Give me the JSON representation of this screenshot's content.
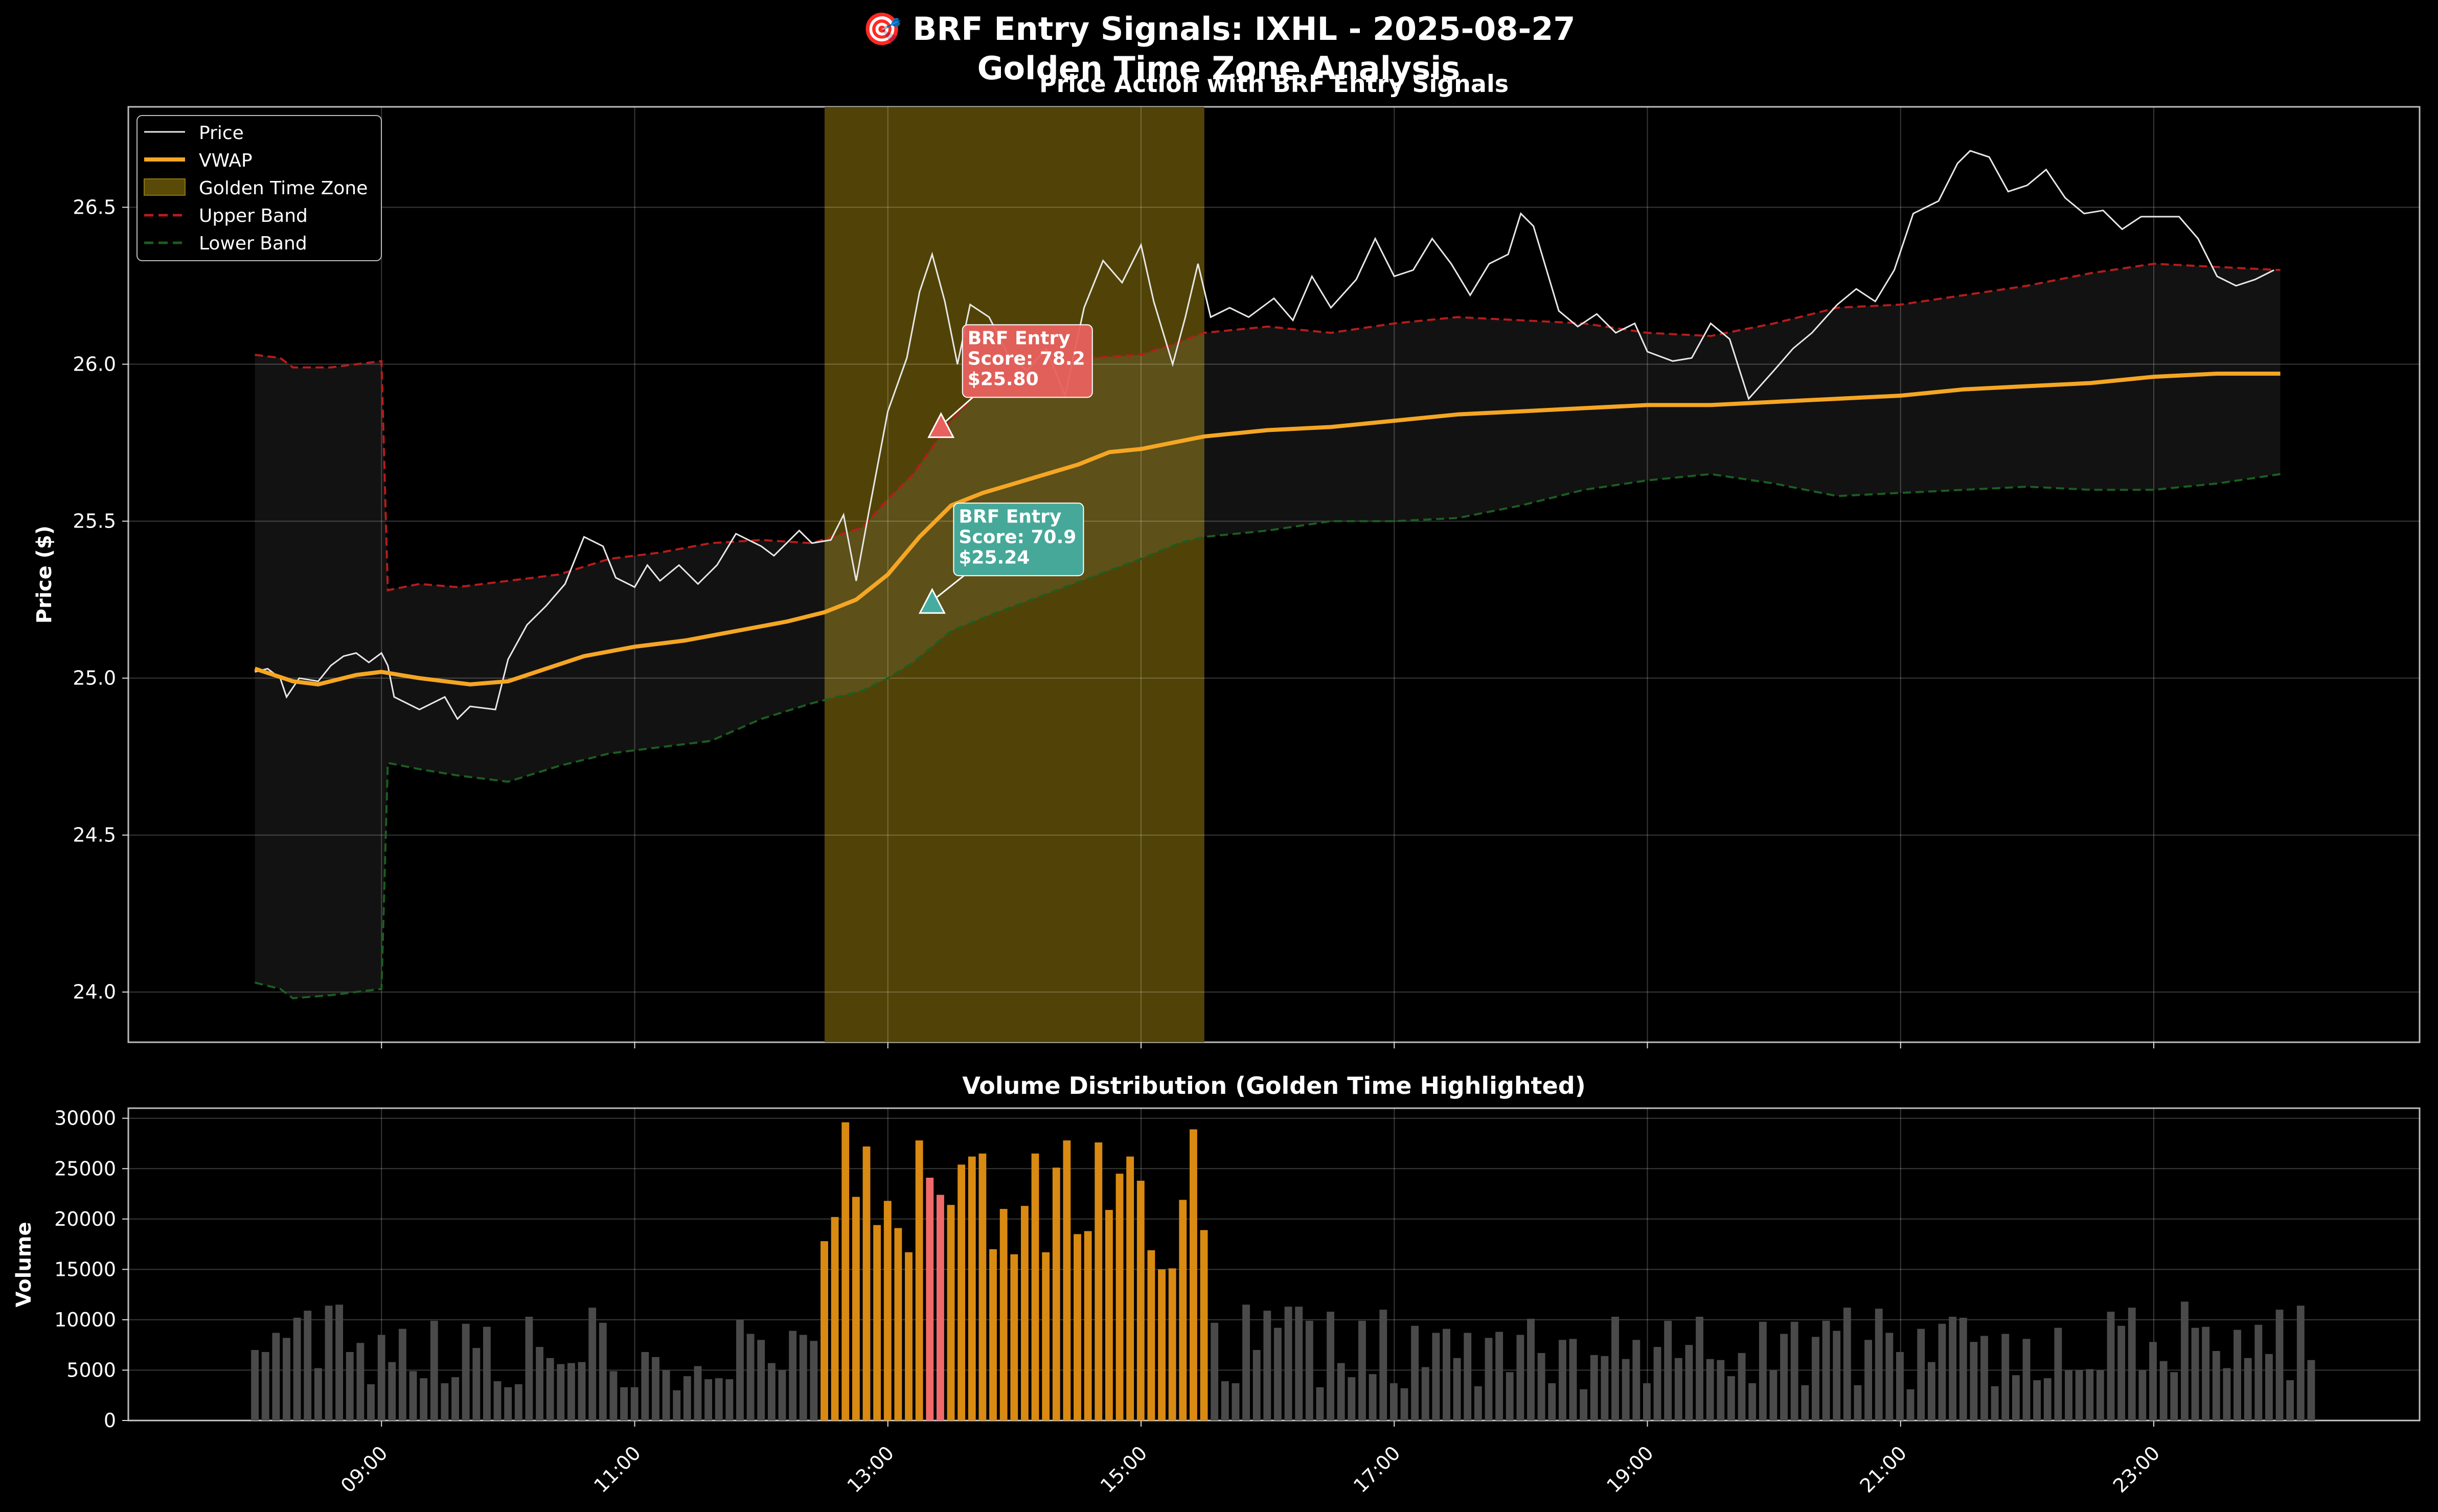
{
  "figure": {
    "title_line1": "🎯 BRF Entry Signals: IXHL - 2025-08-27",
    "title_line2": "Golden Time Zone Analysis"
  },
  "price_panel": {
    "title": "Price Action with BRF Entry Signals",
    "ylabel": "Price ($)",
    "legend": [
      "Price",
      "VWAP",
      "Golden Time Zone",
      "Upper Band",
      "Lower Band"
    ]
  },
  "volume_panel": {
    "title": "Volume Distribution (Golden Time Highlighted)",
    "ylabel": "Volume"
  },
  "colors": {
    "price": "#e8e8e8",
    "vwap": "#f5a623",
    "golden_zone": "#5a4a08",
    "upper_band": "#b71c1c",
    "lower_band": "#1b5e20",
    "signal_red": "#e8615e",
    "signal_teal": "#45ada0",
    "volume_default": "#4a4a4a",
    "volume_golden": "#d98a12",
    "volume_signal": "#f06a6a"
  },
  "chart_data": {
    "type": "line",
    "x_unit": "hour of day",
    "x_range": [
      7.0,
      25.1
    ],
    "x_ticks": [
      "09:00",
      "11:00",
      "13:00",
      "15:00",
      "17:00",
      "19:00",
      "21:00",
      "23:00"
    ],
    "golden_time_zone": [
      "12:30",
      "15:30"
    ],
    "price_axis": {
      "ylim": [
        23.84,
        26.82
      ],
      "yticks": [
        "24.0",
        "24.5",
        "25.0",
        "25.5",
        "26.0",
        "26.5"
      ]
    },
    "price_series": [
      [
        8.0,
        25.02
      ],
      [
        8.1,
        25.03
      ],
      [
        8.2,
        25.0
      ],
      [
        8.25,
        24.94
      ],
      [
        8.35,
        25.0
      ],
      [
        8.5,
        24.99
      ],
      [
        8.6,
        25.04
      ],
      [
        8.7,
        25.07
      ],
      [
        8.8,
        25.08
      ],
      [
        8.9,
        25.05
      ],
      [
        9.0,
        25.08
      ],
      [
        9.05,
        25.04
      ],
      [
        9.1,
        24.94
      ],
      [
        9.3,
        24.9
      ],
      [
        9.5,
        24.94
      ],
      [
        9.6,
        24.87
      ],
      [
        9.7,
        24.91
      ],
      [
        9.9,
        24.9
      ],
      [
        10.0,
        25.06
      ],
      [
        10.15,
        25.17
      ],
      [
        10.3,
        25.23
      ],
      [
        10.45,
        25.3
      ],
      [
        10.6,
        25.45
      ],
      [
        10.75,
        25.42
      ],
      [
        10.85,
        25.32
      ],
      [
        11.0,
        25.29
      ],
      [
        11.1,
        25.36
      ],
      [
        11.2,
        25.31
      ],
      [
        11.35,
        25.36
      ],
      [
        11.5,
        25.3
      ],
      [
        11.65,
        25.36
      ],
      [
        11.8,
        25.46
      ],
      [
        12.0,
        25.42
      ],
      [
        12.1,
        25.39
      ],
      [
        12.3,
        25.47
      ],
      [
        12.4,
        25.43
      ],
      [
        12.55,
        25.44
      ],
      [
        12.65,
        25.52
      ],
      [
        12.75,
        25.31
      ],
      [
        12.85,
        25.53
      ],
      [
        13.0,
        25.85
      ],
      [
        13.15,
        26.02
      ],
      [
        13.25,
        26.23
      ],
      [
        13.35,
        26.35
      ],
      [
        13.45,
        26.2
      ],
      [
        13.55,
        26.0
      ],
      [
        13.65,
        26.19
      ],
      [
        13.8,
        26.15
      ],
      [
        13.95,
        26.03
      ],
      [
        14.1,
        25.98
      ],
      [
        14.25,
        26.05
      ],
      [
        14.4,
        25.9
      ],
      [
        14.55,
        26.18
      ],
      [
        14.7,
        26.33
      ],
      [
        14.85,
        26.26
      ],
      [
        15.0,
        26.38
      ],
      [
        15.1,
        26.2
      ],
      [
        15.25,
        26.0
      ],
      [
        15.35,
        26.15
      ],
      [
        15.45,
        26.32
      ],
      [
        15.55,
        26.15
      ],
      [
        15.7,
        26.18
      ],
      [
        15.85,
        26.15
      ],
      [
        16.05,
        26.21
      ],
      [
        16.2,
        26.14
      ],
      [
        16.35,
        26.28
      ],
      [
        16.5,
        26.18
      ],
      [
        16.7,
        26.27
      ],
      [
        16.85,
        26.4
      ],
      [
        17.0,
        26.28
      ],
      [
        17.15,
        26.3
      ],
      [
        17.3,
        26.4
      ],
      [
        17.45,
        26.32
      ],
      [
        17.6,
        26.22
      ],
      [
        17.75,
        26.32
      ],
      [
        17.9,
        26.35
      ],
      [
        18.0,
        26.48
      ],
      [
        18.1,
        26.44
      ],
      [
        18.3,
        26.17
      ],
      [
        18.45,
        26.12
      ],
      [
        18.6,
        26.16
      ],
      [
        18.75,
        26.1
      ],
      [
        18.9,
        26.13
      ],
      [
        19.0,
        26.04
      ],
      [
        19.2,
        26.01
      ],
      [
        19.35,
        26.02
      ],
      [
        19.5,
        26.13
      ],
      [
        19.65,
        26.08
      ],
      [
        19.8,
        25.89
      ],
      [
        20.0,
        25.98
      ],
      [
        20.15,
        26.05
      ],
      [
        20.3,
        26.1
      ],
      [
        20.5,
        26.19
      ],
      [
        20.65,
        26.24
      ],
      [
        20.8,
        26.2
      ],
      [
        20.95,
        26.3
      ],
      [
        21.1,
        26.48
      ],
      [
        21.3,
        26.52
      ],
      [
        21.45,
        26.64
      ],
      [
        21.55,
        26.68
      ],
      [
        21.7,
        26.66
      ],
      [
        21.85,
        26.55
      ],
      [
        22.0,
        26.57
      ],
      [
        22.15,
        26.62
      ],
      [
        22.3,
        26.53
      ],
      [
        22.45,
        26.48
      ],
      [
        22.6,
        26.49
      ],
      [
        22.75,
        26.43
      ],
      [
        22.9,
        26.47
      ],
      [
        23.05,
        26.47
      ],
      [
        23.2,
        26.47
      ],
      [
        23.35,
        26.4
      ],
      [
        23.5,
        26.28
      ],
      [
        23.65,
        26.25
      ],
      [
        23.8,
        26.27
      ],
      [
        23.95,
        26.3
      ]
    ],
    "vwap_series": [
      [
        8.0,
        25.03
      ],
      [
        8.3,
        24.99
      ],
      [
        8.5,
        24.98
      ],
      [
        8.8,
        25.01
      ],
      [
        9.0,
        25.02
      ],
      [
        9.3,
        25.0
      ],
      [
        9.7,
        24.98
      ],
      [
        10.0,
        24.99
      ],
      [
        10.3,
        25.03
      ],
      [
        10.6,
        25.07
      ],
      [
        11.0,
        25.1
      ],
      [
        11.4,
        25.12
      ],
      [
        11.8,
        25.15
      ],
      [
        12.2,
        25.18
      ],
      [
        12.5,
        25.21
      ],
      [
        12.75,
        25.25
      ],
      [
        13.0,
        25.33
      ],
      [
        13.25,
        25.45
      ],
      [
        13.5,
        25.55
      ],
      [
        13.75,
        25.59
      ],
      [
        14.0,
        25.62
      ],
      [
        14.25,
        25.65
      ],
      [
        14.5,
        25.68
      ],
      [
        14.75,
        25.72
      ],
      [
        15.0,
        25.73
      ],
      [
        15.25,
        25.75
      ],
      [
        15.5,
        25.77
      ],
      [
        16.0,
        25.79
      ],
      [
        16.5,
        25.8
      ],
      [
        17.0,
        25.82
      ],
      [
        17.5,
        25.84
      ],
      [
        18.0,
        25.85
      ],
      [
        18.5,
        25.86
      ],
      [
        19.0,
        25.87
      ],
      [
        19.5,
        25.87
      ],
      [
        20.0,
        25.88
      ],
      [
        20.5,
        25.89
      ],
      [
        21.0,
        25.9
      ],
      [
        21.5,
        25.92
      ],
      [
        22.0,
        25.93
      ],
      [
        22.5,
        25.94
      ],
      [
        23.0,
        25.96
      ],
      [
        23.5,
        25.97
      ],
      [
        24.0,
        25.97
      ]
    ],
    "upper_band_series": [
      [
        8.0,
        26.03
      ],
      [
        8.2,
        26.02
      ],
      [
        8.3,
        25.99
      ],
      [
        8.6,
        25.99
      ],
      [
        8.8,
        26.0
      ],
      [
        9.0,
        26.01
      ],
      [
        9.05,
        25.28
      ],
      [
        9.3,
        25.3
      ],
      [
        9.6,
        25.29
      ],
      [
        10.0,
        25.31
      ],
      [
        10.4,
        25.33
      ],
      [
        10.8,
        25.38
      ],
      [
        11.2,
        25.4
      ],
      [
        11.6,
        25.43
      ],
      [
        12.0,
        25.44
      ],
      [
        12.4,
        25.43
      ],
      [
        12.8,
        25.48
      ],
      [
        13.0,
        25.57
      ],
      [
        13.2,
        25.65
      ],
      [
        13.5,
        25.82
      ],
      [
        13.8,
        25.95
      ],
      [
        14.2,
        25.98
      ],
      [
        14.6,
        26.02
      ],
      [
        15.0,
        26.03
      ],
      [
        15.3,
        26.07
      ],
      [
        15.5,
        26.1
      ],
      [
        16.0,
        26.12
      ],
      [
        16.5,
        26.1
      ],
      [
        17.0,
        26.13
      ],
      [
        17.5,
        26.15
      ],
      [
        18.0,
        26.14
      ],
      [
        18.5,
        26.13
      ],
      [
        19.0,
        26.1
      ],
      [
        19.5,
        26.09
      ],
      [
        20.0,
        26.13
      ],
      [
        20.5,
        26.18
      ],
      [
        21.0,
        26.19
      ],
      [
        21.5,
        26.22
      ],
      [
        22.0,
        26.25
      ],
      [
        22.5,
        26.29
      ],
      [
        23.0,
        26.32
      ],
      [
        23.5,
        26.31
      ],
      [
        24.0,
        26.3
      ]
    ],
    "lower_band_series": [
      [
        8.0,
        24.03
      ],
      [
        8.2,
        24.01
      ],
      [
        8.3,
        23.98
      ],
      [
        8.6,
        23.99
      ],
      [
        8.8,
        24.0
      ],
      [
        9.0,
        24.01
      ],
      [
        9.05,
        24.73
      ],
      [
        9.3,
        24.71
      ],
      [
        9.6,
        24.69
      ],
      [
        10.0,
        24.67
      ],
      [
        10.4,
        24.72
      ],
      [
        10.8,
        24.76
      ],
      [
        11.2,
        24.78
      ],
      [
        11.6,
        24.8
      ],
      [
        12.0,
        24.87
      ],
      [
        12.4,
        24.92
      ],
      [
        12.8,
        24.96
      ],
      [
        13.0,
        25.0
      ],
      [
        13.2,
        25.05
      ],
      [
        13.5,
        25.15
      ],
      [
        13.8,
        25.2
      ],
      [
        14.2,
        25.26
      ],
      [
        14.6,
        25.32
      ],
      [
        15.0,
        25.38
      ],
      [
        15.3,
        25.43
      ],
      [
        15.5,
        25.45
      ],
      [
        16.0,
        25.47
      ],
      [
        16.5,
        25.5
      ],
      [
        17.0,
        25.5
      ],
      [
        17.5,
        25.51
      ],
      [
        18.0,
        25.55
      ],
      [
        18.5,
        25.6
      ],
      [
        19.0,
        25.63
      ],
      [
        19.5,
        25.65
      ],
      [
        20.0,
        25.62
      ],
      [
        20.5,
        25.58
      ],
      [
        21.0,
        25.59
      ],
      [
        21.5,
        25.6
      ],
      [
        22.0,
        25.61
      ],
      [
        22.5,
        25.6
      ],
      [
        23.0,
        25.6
      ],
      [
        23.5,
        25.62
      ],
      [
        24.0,
        25.65
      ]
    ],
    "signals": [
      {
        "x": 13.42,
        "y": 25.8,
        "label": "BRF Entry\nScore: 78.2\n$25.80",
        "color": "#e8615e"
      },
      {
        "x": 13.35,
        "y": 25.24,
        "label": "BRF Entry\nScore: 70.9\n$25.24",
        "color": "#45ada0"
      }
    ],
    "volume_axis": {
      "ylim": [
        0,
        31000
      ],
      "yticks": [
        "0",
        "5000",
        "10000",
        "15000",
        "20000",
        "25000",
        "30000"
      ]
    },
    "volume_bar_interval_hours": 0.0833,
    "volume_start": 8.0,
    "volume_values": [
      7000,
      6800,
      8700,
      8200,
      10200,
      10900,
      5200,
      11400,
      11500,
      6800,
      7700,
      3600,
      8500,
      5800,
      9100,
      4900,
      4200,
      9900,
      3700,
      4300,
      9600,
      7200,
      9300,
      3900,
      3300,
      3600,
      10300,
      7300,
      6200,
      5600,
      5700,
      5800,
      11200,
      9700,
      4900,
      3300,
      3300,
      6800,
      6300,
      5000,
      3000,
      4400,
      5400,
      4100,
      4200,
      4100,
      10000,
      8600,
      8000,
      5700,
      5000,
      8900,
      8500,
      7900,
      17800,
      20200,
      29600,
      22200,
      27200,
      19400,
      21800,
      19100,
      16700,
      27800,
      24100,
      22400,
      21400,
      25400,
      26200,
      26500,
      17000,
      21000,
      16500,
      21300,
      26500,
      16700,
      25100,
      27800,
      18500,
      18800,
      27600,
      20900,
      24500,
      26200,
      23800,
      16900,
      15000,
      15100,
      21900,
      28900,
      18900,
      9700,
      3900,
      3700,
      11500,
      7000,
      10900,
      9200,
      11300,
      11300,
      9900,
      3300,
      10800,
      5700,
      4300,
      9900,
      4600,
      11000,
      3700,
      3200,
      9400,
      5300,
      8700,
      9100,
      6200,
      8700,
      3400,
      8200,
      8800,
      4800,
      8500,
      10100,
      6700,
      3700,
      8000,
      8100,
      3100,
      6500,
      6400,
      10300,
      6100,
      8000,
      3700,
      7300,
      9900,
      6200,
      7500,
      10300,
      6100,
      6000,
      4400,
      6700,
      3700,
      9800,
      5000,
      8600,
      9800,
      3500,
      8300,
      9900,
      8900,
      11200,
      3500,
      8000,
      11100,
      8700,
      6800,
      3100,
      9100,
      5800,
      9600,
      10300,
      10200,
      7800,
      8400,
      3400,
      8600,
      4500,
      8100,
      4000,
      4200,
      9200,
      5000,
      5000,
      5100,
      5000,
      10800,
      9400,
      11200,
      5000,
      7800,
      5900,
      4800,
      11800,
      9200,
      9300,
      6900,
      5200,
      9000,
      6200,
      9500,
      6600,
      11000,
      4000,
      11400,
      6000
    ],
    "signal_volume_bars": [
      64,
      65
    ]
  }
}
